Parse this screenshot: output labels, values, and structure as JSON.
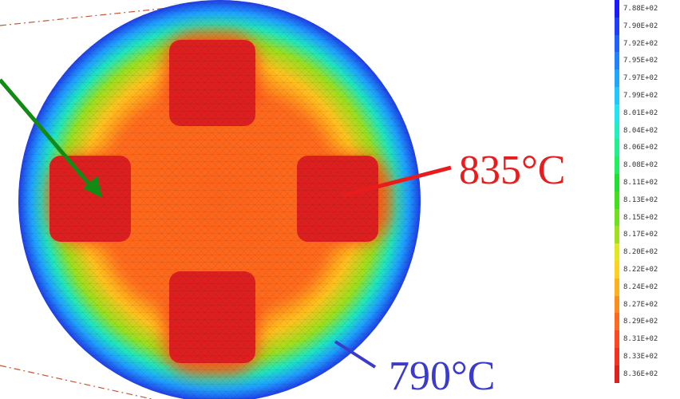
{
  "annotations": {
    "hot_label": "835°C",
    "cold_label": "790°C",
    "hot_color": "#e81c1c",
    "cold_color": "#3a3acb",
    "pointer_color": "#138a13",
    "outline_color": "#c0583a"
  },
  "legend": {
    "entries": [
      {
        "label": "7.88E+02",
        "color": "#1a1aff"
      },
      {
        "label": "7.90E+02",
        "color": "#1f3dff"
      },
      {
        "label": "7.92E+02",
        "color": "#1f60ff"
      },
      {
        "label": "7.95E+02",
        "color": "#1f83ff"
      },
      {
        "label": "7.97E+02",
        "color": "#1fa6ff"
      },
      {
        "label": "7.99E+02",
        "color": "#1fc9ff"
      },
      {
        "label": "8.01E+02",
        "color": "#1fe6f0"
      },
      {
        "label": "8.04E+02",
        "color": "#1ff0c0"
      },
      {
        "label": "8.06E+02",
        "color": "#1ff090"
      },
      {
        "label": "8.08E+02",
        "color": "#1ff060"
      },
      {
        "label": "8.11E+02",
        "color": "#1fe030"
      },
      {
        "label": "8.13E+02",
        "color": "#40e01f"
      },
      {
        "label": "8.15E+02",
        "color": "#70e01f"
      },
      {
        "label": "8.17E+02",
        "color": "#a0e01f"
      },
      {
        "label": "8.20E+02",
        "color": "#e6e61f"
      },
      {
        "label": "8.22E+02",
        "color": "#ffd21f"
      },
      {
        "label": "8.24E+02",
        "color": "#ffb01f"
      },
      {
        "label": "8.27E+02",
        "color": "#ff8c1f"
      },
      {
        "label": "8.29E+02",
        "color": "#ff6a1f"
      },
      {
        "label": "8.31E+02",
        "color": "#ff481f"
      },
      {
        "label": "8.33E+02",
        "color": "#f5301f"
      },
      {
        "label": "8.36E+02",
        "color": "#e0201f"
      }
    ]
  }
}
